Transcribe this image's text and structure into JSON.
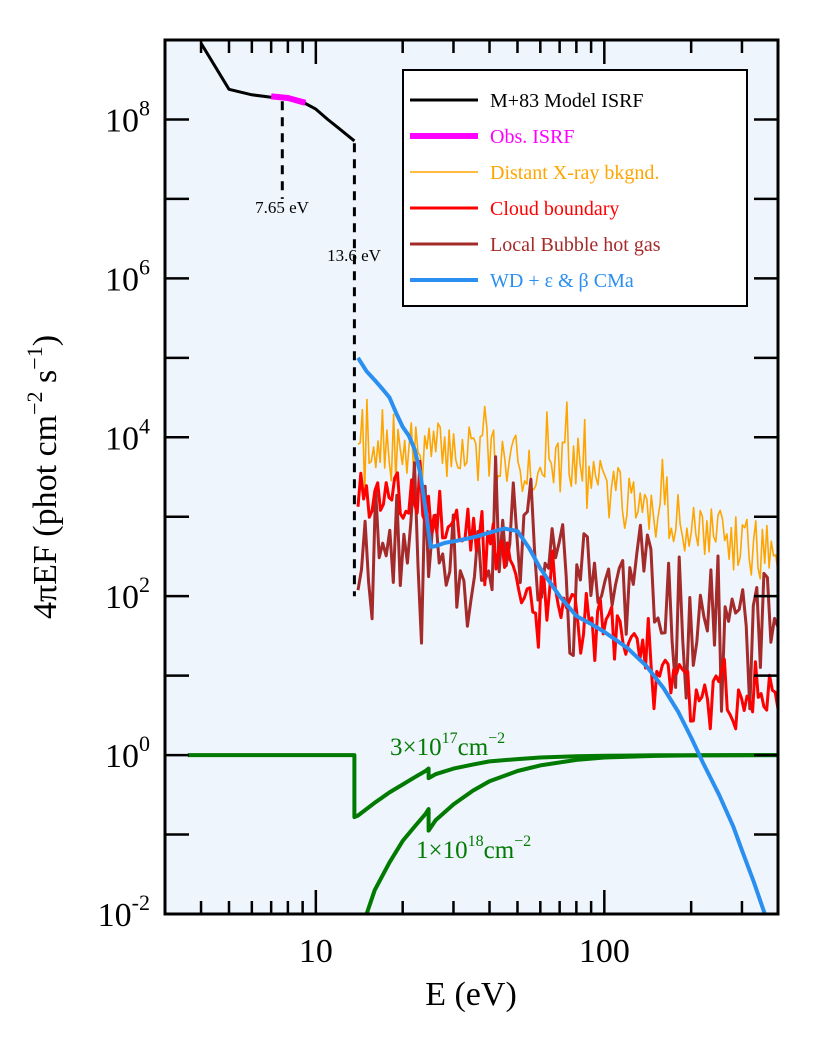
{
  "chart_data": {
    "type": "line",
    "x_scale": "log",
    "y_scale": "log",
    "xlabel": "E (eV)",
    "ylabel_parts": [
      "4πEF (phot cm",
      "−2",
      " s",
      "−1",
      ")"
    ],
    "xlim": [
      3,
      400
    ],
    "ylim_exp": [
      -2,
      9
    ],
    "x_ticks": [
      {
        "value": 10,
        "label": "10"
      },
      {
        "value": 100,
        "label": "100"
      }
    ],
    "y_ticks": [
      {
        "exp": 8,
        "base": "10",
        "sup": "8"
      },
      {
        "exp": 6,
        "base": "10",
        "sup": "6"
      },
      {
        "exp": 4,
        "base": "10",
        "sup": "4"
      },
      {
        "exp": 2,
        "base": "10",
        "sup": "2"
      },
      {
        "exp": 0,
        "base": "10",
        "sup": "0"
      },
      {
        "exp": -2,
        "base": "10",
        "sup": "-2"
      }
    ],
    "colors": {
      "background": "#eef5fc",
      "model": "#000000",
      "obs": "#ff00ff",
      "xray": "#ffa500",
      "cloud": "#ff0000",
      "bubble": "#a52a2a",
      "wd": "#2b8ff0",
      "column": "#007a00"
    },
    "legend": [
      {
        "label": "M+83 Model ISRF",
        "color": "#000000",
        "width": 3
      },
      {
        "label": "Obs. ISRF",
        "color": "#ff00ff",
        "width": 6
      },
      {
        "label": "Distant X-ray bkgnd.",
        "color": "#ffa500",
        "width": 1.5
      },
      {
        "label": "Cloud boundary",
        "color": "#ff0000",
        "width": 3
      },
      {
        "label": "Local Bubble hot gas",
        "color": "#a52a2a",
        "width": 3
      },
      {
        "label": "WD + ε & β CMa",
        "color": "#2b8ff0",
        "width": 4
      }
    ],
    "annotations": {
      "e765": "7.65 eV",
      "e136": "13.6 eV",
      "col1_prefix": "3×10",
      "col1_sup": "17",
      "col1_unit": "cm",
      "col1_unitsup": "−2",
      "col2_prefix": "1×10",
      "col2_sup": "18",
      "col2_unit": "cm",
      "col2_unitsup": "−2"
    },
    "series": [
      {
        "name": "M+83 Model ISRF",
        "x": [
          4,
          5,
          6,
          7,
          8,
          9,
          10,
          11,
          12,
          13.6
        ],
        "y_exp": [
          8.96,
          8.38,
          8.31,
          8.28,
          8.26,
          8.22,
          8.13,
          8.0,
          7.89,
          7.73
        ]
      },
      {
        "name": "Obs. ISRF",
        "x": [
          7.0,
          8.0,
          9.2
        ],
        "y_exp": [
          8.29,
          8.27,
          8.21
        ]
      },
      {
        "name": "7.65 eV dropline",
        "x": [
          7.65,
          7.65
        ],
        "y_exp": [
          8.23,
          7.0
        ]
      },
      {
        "name": "13.6 eV dropline",
        "x": [
          13.6,
          13.6
        ],
        "y_exp": [
          7.7,
          2.0
        ]
      },
      {
        "name": "WD + eps & beta CMa",
        "x": [
          14,
          15,
          16,
          17,
          18,
          19,
          20,
          21,
          22,
          23,
          24,
          25,
          26,
          28,
          30,
          33,
          36,
          40,
          45,
          50,
          55,
          60,
          70,
          80,
          90,
          100,
          120,
          140,
          160,
          180,
          200,
          220,
          250,
          280,
          300,
          330,
          360
        ],
        "y_exp": [
          5.0,
          4.83,
          4.72,
          4.61,
          4.5,
          4.3,
          4.13,
          4.02,
          3.85,
          3.55,
          3.1,
          2.62,
          2.63,
          2.67,
          2.69,
          2.72,
          2.75,
          2.8,
          2.85,
          2.82,
          2.6,
          2.35,
          2.0,
          1.75,
          1.65,
          1.55,
          1.35,
          1.12,
          0.85,
          0.55,
          0.22,
          -0.1,
          -0.5,
          -0.9,
          -1.2,
          -1.6,
          -2.0
        ]
      },
      {
        "name": "Column 3e17",
        "x": [
          3.6,
          13.6,
          13.6,
          14,
          16,
          18,
          20,
          22,
          24,
          24.6,
          24.6,
          26,
          30,
          35,
          40,
          50,
          60,
          80,
          100,
          150,
          200,
          300,
          400
        ],
        "y_exp": [
          0.0,
          0.0,
          -0.78,
          -0.76,
          -0.6,
          -0.47,
          -0.37,
          -0.28,
          -0.2,
          -0.17,
          -0.29,
          -0.24,
          -0.17,
          -0.12,
          -0.08,
          -0.05,
          -0.03,
          -0.015,
          -0.008,
          -0.003,
          -0.001,
          0.0,
          0.0
        ]
      },
      {
        "name": "Column 1e18",
        "x": [
          15,
          16,
          18,
          20,
          22,
          24,
          24.6,
          24.6,
          26,
          30,
          35,
          40,
          50,
          60,
          80,
          100,
          150,
          200,
          300,
          400
        ],
        "y_exp": [
          -2.0,
          -1.7,
          -1.35,
          -1.08,
          -0.9,
          -0.74,
          -0.68,
          -0.95,
          -0.82,
          -0.62,
          -0.45,
          -0.33,
          -0.2,
          -0.13,
          -0.06,
          -0.03,
          -0.01,
          -0.004,
          -0.001,
          0.0
        ]
      }
    ],
    "noisy_series": [
      {
        "name": "Distant X-ray bkgnd.",
        "xmin": 14,
        "xmax": 400,
        "points": 190,
        "seed": 7,
        "anchors": [
          [
            14,
            3.6
          ],
          [
            20,
            3.8
          ],
          [
            30,
            3.85
          ],
          [
            50,
            3.65
          ],
          [
            70,
            3.65
          ],
          [
            100,
            3.35
          ],
          [
            150,
            3.05
          ],
          [
            200,
            2.85
          ],
          [
            300,
            2.65
          ],
          [
            400,
            2.5
          ]
        ],
        "noise": 0.75,
        "noise_up": 0.85
      }
    ],
    "jagged_series": [
      {
        "name": "Cloud boundary",
        "xmin": 14,
        "xmax": 400,
        "points": 150,
        "seed": 3,
        "anchors": [
          [
            14,
            3.3
          ],
          [
            20,
            3.3
          ],
          [
            25,
            3.1
          ],
          [
            30,
            2.9
          ],
          [
            40,
            2.7
          ],
          [
            50,
            2.2
          ],
          [
            60,
            1.95
          ],
          [
            70,
            2.0
          ],
          [
            80,
            1.8
          ],
          [
            100,
            1.6
          ],
          [
            150,
            1.15
          ],
          [
            200,
            0.85
          ],
          [
            300,
            0.7
          ],
          [
            400,
            0.85
          ]
        ],
        "amp": 0.55
      },
      {
        "name": "Local Bubble hot gas",
        "xmin": 14,
        "xmax": 400,
        "points": 120,
        "seed": 11,
        "anchors": [
          [
            14,
            2.7
          ],
          [
            20,
            2.6
          ],
          [
            25,
            2.5
          ],
          [
            30,
            2.4
          ],
          [
            40,
            2.6
          ],
          [
            50,
            2.6
          ],
          [
            60,
            2.4
          ],
          [
            80,
            2.3
          ],
          [
            100,
            2.2
          ],
          [
            150,
            2.0
          ],
          [
            200,
            1.85
          ],
          [
            300,
            1.6
          ],
          [
            400,
            1.75
          ]
        ],
        "amp": 1.0
      }
    ]
  }
}
